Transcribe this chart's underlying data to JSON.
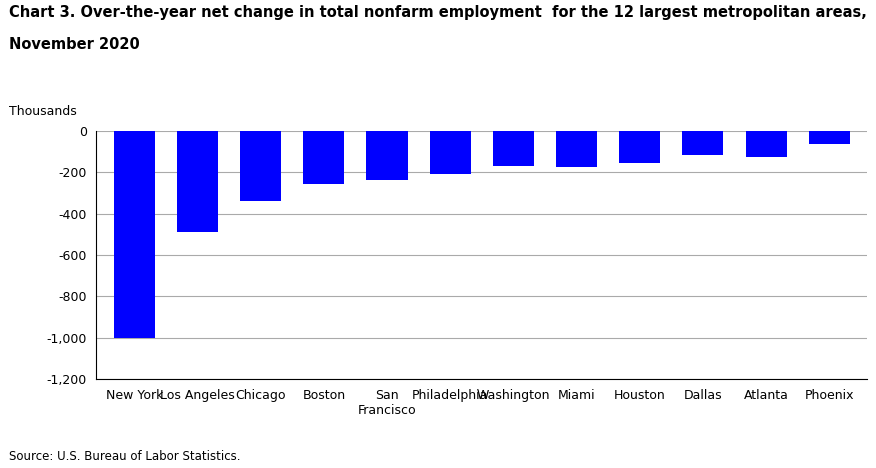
{
  "title_line1": "Chart 3. Over-the-year net change in total nonfarm employment  for the 12 largest metropolitan areas,",
  "title_line2": "November 2020",
  "thousands_label": "Thousands",
  "source": "Source: U.S. Bureau of Labor Statistics.",
  "categories": [
    "New York",
    "Los Angeles",
    "Chicago",
    "Boston",
    "San\nFrancisco",
    "Philadelphia",
    "Washington",
    "Miami",
    "Houston",
    "Dallas",
    "Atlanta",
    "Phoenix"
  ],
  "values": [
    -1000,
    -490,
    -340,
    -255,
    -235,
    -210,
    -170,
    -175,
    -155,
    -115,
    -125,
    -65
  ],
  "bar_color": "#0000ff",
  "ylim": [
    -1200,
    0
  ],
  "yticks": [
    0,
    -200,
    -400,
    -600,
    -800,
    -1000,
    -1200
  ],
  "background_color": "#ffffff",
  "grid_color": "#aaaaaa"
}
